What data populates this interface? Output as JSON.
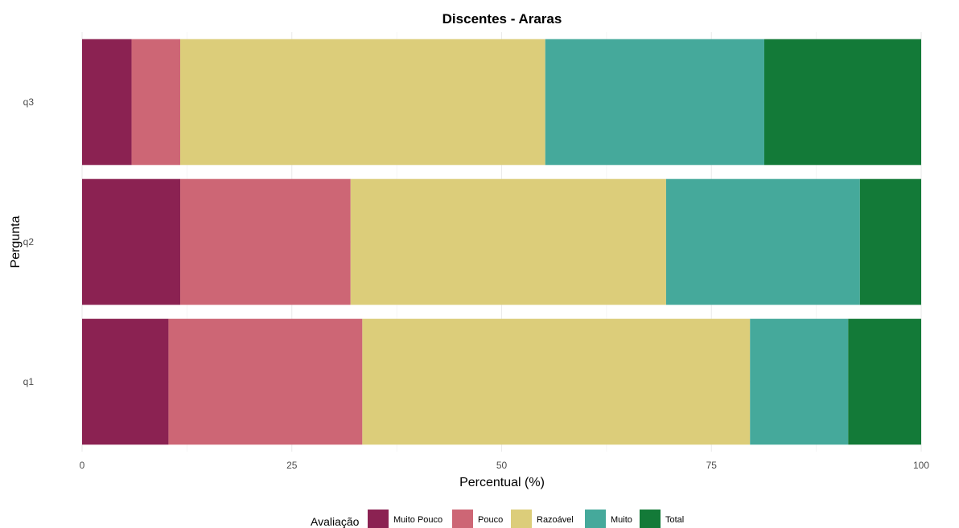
{
  "chart_data": {
    "type": "bar",
    "orientation": "horizontal",
    "stacked": true,
    "title": "Discentes - Araras",
    "xlabel": "Percentual (%)",
    "ylabel": "Pergunta",
    "xlim": [
      0,
      100
    ],
    "xticks": [
      0,
      25,
      50,
      75,
      100
    ],
    "grid": true,
    "legend_position": "bottom",
    "legend_title": "Avaliação",
    "categories": [
      "q1",
      "q2",
      "q3"
    ],
    "series": [
      {
        "name": "Muito Pouco",
        "color": "#8b2252",
        "values": [
          10.3,
          11.7,
          5.9
        ]
      },
      {
        "name": "Pouco",
        "color": "#cd6675",
        "values": [
          23.1,
          20.3,
          5.8
        ]
      },
      {
        "name": "Razoável",
        "color": "#dccd7a",
        "values": [
          46.2,
          37.6,
          43.5
        ]
      },
      {
        "name": "Muito",
        "color": "#45a99b",
        "values": [
          11.7,
          23.1,
          26.1
        ]
      },
      {
        "name": "Total",
        "color": "#137a38",
        "values": [
          8.7,
          7.3,
          18.7
        ]
      }
    ]
  }
}
